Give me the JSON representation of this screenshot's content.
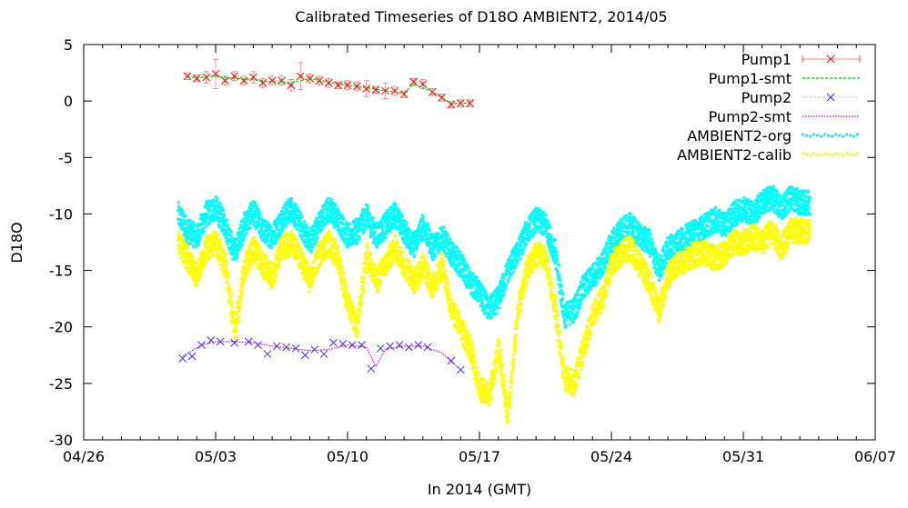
{
  "chart_data": {
    "type": "line",
    "title": "Calibrated Timeseries of D18O AMBIENT2, 2014/05",
    "xlabel": "In 2014 (GMT)",
    "ylabel": "D18O",
    "x_type": "date",
    "xlim": [
      "2014-04-26",
      "2014-06-07"
    ],
    "ylim": [
      -30,
      5
    ],
    "x_ticks": [
      "04/26",
      "05/03",
      "05/10",
      "05/17",
      "05/24",
      "05/31",
      "06/07"
    ],
    "y_ticks": [
      5,
      0,
      -5,
      -10,
      -15,
      -20,
      -25,
      -30
    ],
    "grid": false,
    "legend_position": "top-right",
    "series": [
      {
        "name": "Pump1",
        "style": "points-x-with-errorbars",
        "color": "#ff0000",
        "x": [
          "2014-05-01T12:00",
          "2014-05-02T00:00",
          "2014-05-02T12:00",
          "2014-05-03T00:00",
          "2014-05-03T12:00",
          "2014-05-04T00:00",
          "2014-05-04T12:00",
          "2014-05-05T00:00",
          "2014-05-05T12:00",
          "2014-05-06T00:00",
          "2014-05-06T12:00",
          "2014-05-07T00:00",
          "2014-05-07T12:00",
          "2014-05-08T00:00",
          "2014-05-08T12:00",
          "2014-05-09T00:00",
          "2014-05-09T12:00",
          "2014-05-10T00:00",
          "2014-05-10T12:00",
          "2014-05-11T00:00",
          "2014-05-11T12:00",
          "2014-05-12T00:00",
          "2014-05-12T12:00",
          "2014-05-13T00:00",
          "2014-05-13T12:00",
          "2014-05-14T00:00",
          "2014-05-14T12:00",
          "2014-05-15T00:00",
          "2014-05-15T12:00",
          "2014-05-16T00:00",
          "2014-05-16T12:00"
        ],
        "values": [
          2.2,
          2.0,
          2.1,
          2.4,
          1.8,
          2.2,
          1.8,
          2.1,
          1.6,
          1.8,
          1.8,
          1.4,
          2.2,
          2.0,
          1.8,
          1.6,
          1.4,
          1.4,
          1.3,
          1.1,
          1.0,
          0.9,
          0.9,
          0.6,
          1.7,
          1.5,
          0.8,
          0.3,
          -0.3,
          -0.2,
          -0.2
        ],
        "errors": [
          0.3,
          0.3,
          0.5,
          1.3,
          0.4,
          0.4,
          0.4,
          0.5,
          0.4,
          0.4,
          0.4,
          0.5,
          1.2,
          0.4,
          0.4,
          0.4,
          0.3,
          0.4,
          0.4,
          0.7,
          0.3,
          0.7,
          0.4,
          0.3,
          0.3,
          0.4,
          0.3,
          0.3,
          0.3,
          0.3,
          0.3
        ]
      },
      {
        "name": "Pump1-smt",
        "style": "line",
        "color": "#00cc00",
        "x": [
          "2014-05-01T12:00",
          "2014-05-02T12:00",
          "2014-05-03T00:00",
          "2014-05-04T00:00",
          "2014-05-05T00:00",
          "2014-05-06T00:00",
          "2014-05-07T00:00",
          "2014-05-08T00:00",
          "2014-05-09T00:00",
          "2014-05-10T00:00",
          "2014-05-11T00:00",
          "2014-05-12T00:00",
          "2014-05-13T00:00",
          "2014-05-13T12:00",
          "2014-05-14T12:00",
          "2014-05-15T12:00",
          "2014-05-16T12:00"
        ],
        "values": [
          2.1,
          2.1,
          2.2,
          2.0,
          1.9,
          1.7,
          1.6,
          2.0,
          1.7,
          1.4,
          1.2,
          0.9,
          0.7,
          1.5,
          0.8,
          -0.2,
          -0.2
        ]
      },
      {
        "name": "Pump2",
        "style": "points-x",
        "color": "#3333ff",
        "x": [
          "2014-05-01T06:00",
          "2014-05-01T18:00",
          "2014-05-02T06:00",
          "2014-05-02T18:00",
          "2014-05-03T06:00",
          "2014-05-04T00:00",
          "2014-05-04T18:00",
          "2014-05-05T06:00",
          "2014-05-05T18:00",
          "2014-05-06T06:00",
          "2014-05-06T18:00",
          "2014-05-07T06:00",
          "2014-05-07T18:00",
          "2014-05-08T06:00",
          "2014-05-08T18:00",
          "2014-05-09T06:00",
          "2014-05-09T18:00",
          "2014-05-10T06:00",
          "2014-05-10T18:00",
          "2014-05-11T06:00",
          "2014-05-11T18:00",
          "2014-05-12T06:00",
          "2014-05-12T18:00",
          "2014-05-13T06:00",
          "2014-05-13T18:00",
          "2014-05-14T06:00",
          "2014-05-15T12:00",
          "2014-05-16T00:00"
        ],
        "values": [
          -22.8,
          -22.6,
          -21.6,
          -21.2,
          -21.3,
          -21.4,
          -21.3,
          -21.6,
          -22.4,
          -21.7,
          -21.8,
          -21.9,
          -22.5,
          -22.0,
          -22.4,
          -21.4,
          -21.5,
          -21.6,
          -21.6,
          -23.7,
          -21.9,
          -21.7,
          -21.6,
          -21.8,
          -21.6,
          -21.8,
          -23.0,
          -23.8
        ]
      },
      {
        "name": "Pump2-smt",
        "style": "line",
        "color": "#cc00cc",
        "x": [
          "2014-05-01T06:00",
          "2014-05-02T06:00",
          "2014-05-03T00:00",
          "2014-05-04T00:00",
          "2014-05-05T00:00",
          "2014-05-06T00:00",
          "2014-05-07T00:00",
          "2014-05-08T00:00",
          "2014-05-09T00:00",
          "2014-05-10T00:00",
          "2014-05-11T00:00",
          "2014-05-11T12:00",
          "2014-05-12T00:00",
          "2014-05-13T00:00",
          "2014-05-14T00:00",
          "2014-05-15T00:00",
          "2014-05-16T00:00"
        ],
        "values": [
          -22.6,
          -21.6,
          -21.3,
          -21.3,
          -21.4,
          -21.7,
          -21.9,
          -22.1,
          -22.0,
          -21.6,
          -21.8,
          -23.5,
          -22.0,
          -21.7,
          -21.7,
          -22.3,
          -23.8
        ]
      },
      {
        "name": "AMBIENT2-org",
        "style": "dense-points",
        "color": "#00ffff",
        "x": [
          "2014-05-01T00:00",
          "2014-05-01T12:00",
          "2014-05-02T00:00",
          "2014-05-02T12:00",
          "2014-05-03T00:00",
          "2014-05-03T12:00",
          "2014-05-04T00:00",
          "2014-05-04T12:00",
          "2014-05-05T00:00",
          "2014-05-05T12:00",
          "2014-05-06T00:00",
          "2014-05-06T12:00",
          "2014-05-07T00:00",
          "2014-05-07T12:00",
          "2014-05-08T00:00",
          "2014-05-08T12:00",
          "2014-05-09T00:00",
          "2014-05-09T12:00",
          "2014-05-10T00:00",
          "2014-05-10T12:00",
          "2014-05-11T00:00",
          "2014-05-11T12:00",
          "2014-05-12T00:00",
          "2014-05-12T12:00",
          "2014-05-13T00:00",
          "2014-05-13T12:00",
          "2014-05-14T00:00",
          "2014-05-14T12:00",
          "2014-05-15T00:00",
          "2014-05-15T12:00",
          "2014-05-16T00:00",
          "2014-05-16T12:00",
          "2014-05-17T00:00",
          "2014-05-17T12:00",
          "2014-05-18T00:00",
          "2014-05-18T12:00",
          "2014-05-19T00:00",
          "2014-05-19T12:00",
          "2014-05-20T00:00",
          "2014-05-20T12:00",
          "2014-05-21T00:00",
          "2014-05-21T12:00",
          "2014-05-22T00:00",
          "2014-05-22T12:00",
          "2014-05-23T00:00",
          "2014-05-23T12:00",
          "2014-05-24T00:00",
          "2014-05-24T12:00",
          "2014-05-25T00:00",
          "2014-05-25T12:00",
          "2014-05-26T00:00",
          "2014-05-26T12:00",
          "2014-05-27T00:00",
          "2014-05-27T12:00",
          "2014-05-28T00:00",
          "2014-05-28T12:00",
          "2014-05-29T00:00",
          "2014-05-29T12:00",
          "2014-05-30T00:00",
          "2014-05-30T12:00",
          "2014-05-31T00:00",
          "2014-05-31T12:00",
          "2014-06-01T00:00",
          "2014-06-01T12:00",
          "2014-06-02T00:00",
          "2014-06-02T12:00",
          "2014-06-03T00:00",
          "2014-06-03T12:00"
        ],
        "values": [
          -10.0,
          -11.5,
          -12.0,
          -10.0,
          -9.5,
          -11.0,
          -13.5,
          -11.0,
          -9.8,
          -11.5,
          -12.0,
          -10.5,
          -9.5,
          -11.0,
          -12.5,
          -10.8,
          -9.5,
          -10.5,
          -12.0,
          -11.5,
          -10.2,
          -12.0,
          -11.0,
          -10.0,
          -11.5,
          -12.8,
          -11.0,
          -13.0,
          -12.0,
          -13.5,
          -14.5,
          -16.0,
          -17.0,
          -18.5,
          -17.5,
          -15.0,
          -13.5,
          -11.5,
          -10.5,
          -11.0,
          -13.5,
          -19.0,
          -18.5,
          -16.5,
          -15.5,
          -14.5,
          -12.5,
          -11.5,
          -11.0,
          -12.0,
          -12.5,
          -15.0,
          -13.0,
          -12.5,
          -12.0,
          -11.5,
          -11.0,
          -10.5,
          -11.0,
          -10.0,
          -9.5,
          -10.0,
          -9.0,
          -8.5,
          -9.5,
          -8.5,
          -9.0,
          -9.0
        ]
      },
      {
        "name": "AMBIENT2-calib",
        "style": "dense-points",
        "color": "#ffff00",
        "x": [
          "2014-05-01T00:00",
          "2014-05-01T12:00",
          "2014-05-02T00:00",
          "2014-05-02T12:00",
          "2014-05-03T00:00",
          "2014-05-03T12:00",
          "2014-05-04T00:00",
          "2014-05-04T12:00",
          "2014-05-05T00:00",
          "2014-05-05T12:00",
          "2014-05-06T00:00",
          "2014-05-06T12:00",
          "2014-05-07T00:00",
          "2014-05-07T12:00",
          "2014-05-08T00:00",
          "2014-05-08T12:00",
          "2014-05-09T00:00",
          "2014-05-09T12:00",
          "2014-05-10T00:00",
          "2014-05-10T12:00",
          "2014-05-11T00:00",
          "2014-05-11T12:00",
          "2014-05-12T00:00",
          "2014-05-12T12:00",
          "2014-05-13T00:00",
          "2014-05-13T12:00",
          "2014-05-14T00:00",
          "2014-05-14T12:00",
          "2014-05-15T00:00",
          "2014-05-15T12:00",
          "2014-05-16T00:00",
          "2014-05-16T12:00",
          "2014-05-17T00:00",
          "2014-05-17T12:00",
          "2014-05-18T00:00",
          "2014-05-18T12:00",
          "2014-05-19T00:00",
          "2014-05-19T12:00",
          "2014-05-20T00:00",
          "2014-05-20T12:00",
          "2014-05-21T00:00",
          "2014-05-21T12:00",
          "2014-05-22T00:00",
          "2014-05-22T12:00",
          "2014-05-23T00:00",
          "2014-05-23T12:00",
          "2014-05-24T00:00",
          "2014-05-24T12:00",
          "2014-05-25T00:00",
          "2014-05-25T12:00",
          "2014-05-26T00:00",
          "2014-05-26T12:00",
          "2014-05-27T00:00",
          "2014-05-27T12:00",
          "2014-05-28T00:00",
          "2014-05-28T12:00",
          "2014-05-29T00:00",
          "2014-05-29T12:00",
          "2014-05-30T00:00",
          "2014-05-30T12:00",
          "2014-05-31T00:00",
          "2014-05-31T12:00",
          "2014-06-01T00:00",
          "2014-06-01T12:00",
          "2014-06-02T00:00",
          "2014-06-02T12:00",
          "2014-06-03T00:00",
          "2014-06-03T12:00"
        ],
        "values": [
          -12.5,
          -14.0,
          -15.5,
          -13.0,
          -12.5,
          -14.5,
          -20.5,
          -15.0,
          -13.0,
          -14.5,
          -15.5,
          -13.0,
          -12.5,
          -14.0,
          -16.0,
          -13.5,
          -12.5,
          -14.0,
          -18.0,
          -20.0,
          -13.5,
          -16.0,
          -14.5,
          -13.0,
          -14.5,
          -16.0,
          -14.5,
          -16.5,
          -14.5,
          -18.5,
          -20.0,
          -22.0,
          -25.5,
          -26.0,
          -22.0,
          -28.0,
          -19.0,
          -15.0,
          -13.5,
          -14.0,
          -18.5,
          -24.5,
          -25.0,
          -22.0,
          -19.0,
          -17.5,
          -14.5,
          -13.5,
          -13.0,
          -14.5,
          -16.0,
          -18.5,
          -15.5,
          -14.5,
          -14.0,
          -13.5,
          -13.5,
          -14.0,
          -13.5,
          -12.5,
          -12.5,
          -12.0,
          -12.5,
          -11.5,
          -13.0,
          -11.5,
          -11.5,
          -11.5
        ]
      }
    ]
  }
}
